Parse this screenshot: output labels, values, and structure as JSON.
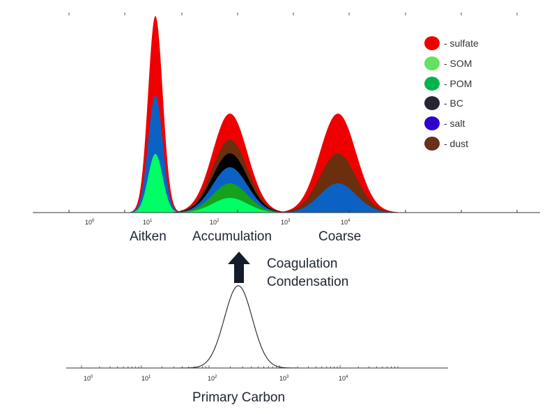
{
  "legend": [
    {
      "label": "- sulfate",
      "color": "#ef0000"
    },
    {
      "label": "- SOM",
      "color": "#66e060"
    },
    {
      "label": "- POM",
      "color": "#00b54f"
    },
    {
      "label": "- BC",
      "color": "#262633"
    },
    {
      "label": "- salt",
      "color": "#3000cc"
    },
    {
      "label": "- dust",
      "color": "#6b2f1c"
    }
  ],
  "tick_labels": {
    "top_axis": [
      {
        "base": "10",
        "exp": "0"
      },
      {
        "base": "10",
        "exp": "1"
      },
      {
        "base": "10",
        "exp": "2"
      },
      {
        "base": "10",
        "exp": "3"
      },
      {
        "base": "10",
        "exp": "4"
      }
    ],
    "bottom_axis": [
      {
        "base": "10",
        "exp": "0"
      },
      {
        "base": "10",
        "exp": "1"
      },
      {
        "base": "10",
        "exp": "2"
      },
      {
        "base": "10",
        "exp": "3"
      },
      {
        "base": "10",
        "exp": "4"
      }
    ]
  },
  "modes": {
    "aitken": "Aitken",
    "accumulation": "Accumulation",
    "coarse": "Coarse"
  },
  "process": {
    "line1": "Coagulation",
    "line2": "Condensation"
  },
  "bottom_title": "Primary Carbon",
  "colors": {
    "sulfate": "#ef0000",
    "som": "#00ff66",
    "pom": "#16a01c",
    "bc": "#000000",
    "salt": "#0b62c4",
    "dust": "#6b2f0e",
    "arrow": "#141c2b"
  },
  "chart_data": {
    "type": "area",
    "xscale": "log",
    "description_modes": [
      "Aitken",
      "Accumulation",
      "Coarse"
    ],
    "series_layers": {
      "aitken": [
        "SOM",
        "salt",
        "sulfate"
      ],
      "accumulation": [
        "SOM",
        "POM",
        "salt",
        "BC",
        "dust",
        "sulfate"
      ],
      "coarse": [
        "salt",
        "dust",
        "sulfate"
      ]
    },
    "primary_carbon_peak_x": 200
  }
}
